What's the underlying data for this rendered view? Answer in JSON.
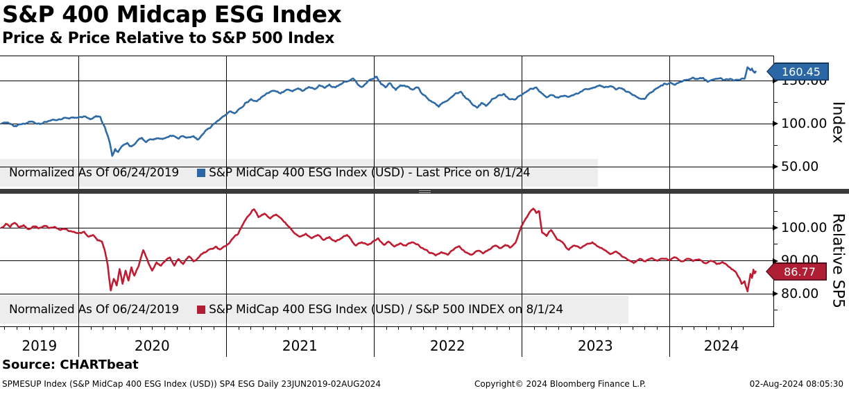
{
  "header": {
    "title": "S&P 400 Midcap ESG Index",
    "subtitle": "Price & Price Relative to S&P 500 Index"
  },
  "panels": {
    "top": {
      "axis_title": "Index",
      "y_axis": {
        "major": [
          {
            "v": 150,
            "label": "150.00"
          },
          {
            "v": 100,
            "label": "100.00"
          },
          {
            "v": 50,
            "label": "50.00"
          }
        ],
        "minor": [
          125,
          75
        ]
      },
      "legend": {
        "normalized_label": "Normalized As Of 06/24/2019",
        "series_label": "S&P MidCap 400 ESG Index (USD) - Last Price on 8/1/24",
        "swatch_color": "#2b67a5"
      },
      "last_price_badge": {
        "text": "160.45",
        "fill": "#2b67a5",
        "border": "#16365c"
      }
    },
    "bottom": {
      "axis_title": "Relative SP5",
      "y_axis": {
        "major": [
          {
            "v": 100,
            "label": "100.00"
          },
          {
            "v": 90,
            "label": "90.00"
          },
          {
            "v": 80,
            "label": "80.00"
          }
        ],
        "minor": [
          105,
          95,
          85,
          75
        ]
      },
      "legend": {
        "normalized_label": "Normalized As Of 06/24/2019",
        "series_label": "S&P MidCap 400 ESG Index (USD) / S&P 500 INDEX on 8/1/24",
        "swatch_color": "#b01e33"
      },
      "last_price_badge": {
        "text": "86.77",
        "fill": "#b01e33",
        "border": "#4d0d18"
      }
    }
  },
  "x_axis": {
    "years": [
      "2019",
      "2020",
      "2021",
      "2022",
      "2023",
      "2024"
    ]
  },
  "footer": {
    "source": "Source: CHARTbeat",
    "ticker_line": "SPMESUP Index (S&P MidCap 400 ESG Index (USD)) SP4 ESG  Daily 23JUN2019-02AUG2024",
    "copyright": "Copyright© 2024 Bloomberg Finance L.P.",
    "timestamp": "02-Aug-2024 08:05:30"
  },
  "chart_data": [
    {
      "type": "line",
      "panel": "top",
      "name": "S&P MidCap 400 ESG Index (USD) - Last Price",
      "ticker": "SPMESUP Index",
      "ylabel": "Index",
      "color": "#2e6ba6",
      "normalized_as_of": "06/24/2019",
      "last_value": 160.45,
      "last_date": "8/1/24",
      "yticks": [
        50,
        100,
        150
      ],
      "ylim": [
        23,
        179
      ],
      "xlim": [
        2019.478,
        2024.71
      ],
      "x_unit": "decimal_year",
      "points": [
        [
          2019.48,
          100
        ],
        [
          2019.52,
          101.3
        ],
        [
          2019.55,
          99.2
        ],
        [
          2019.58,
          96.8
        ],
        [
          2019.62,
          99.5
        ],
        [
          2019.66,
          101.2
        ],
        [
          2019.7,
          101.8
        ],
        [
          2019.73,
          100.2
        ],
        [
          2019.77,
          102
        ],
        [
          2019.81,
          103.2
        ],
        [
          2019.85,
          104
        ],
        [
          2019.89,
          105.2
        ],
        [
          2019.93,
          106.3
        ],
        [
          2019.97,
          107
        ],
        [
          2020.01,
          107.6
        ],
        [
          2020.05,
          108.2
        ],
        [
          2020.08,
          105
        ],
        [
          2020.12,
          108.8
        ],
        [
          2020.15,
          107.5
        ],
        [
          2020.18,
          96
        ],
        [
          2020.21,
          80
        ],
        [
          2020.23,
          62.5
        ],
        [
          2020.25,
          70.5
        ],
        [
          2020.27,
          67
        ],
        [
          2020.3,
          74.5
        ],
        [
          2020.33,
          77.5
        ],
        [
          2020.36,
          73.5
        ],
        [
          2020.4,
          80
        ],
        [
          2020.43,
          83.5
        ],
        [
          2020.46,
          78.5
        ],
        [
          2020.5,
          81.5
        ],
        [
          2020.53,
          83
        ],
        [
          2020.57,
          82
        ],
        [
          2020.61,
          84.5
        ],
        [
          2020.64,
          86
        ],
        [
          2020.68,
          82.5
        ],
        [
          2020.71,
          85.5
        ],
        [
          2020.74,
          84
        ],
        [
          2020.78,
          85.5
        ],
        [
          2020.81,
          81.5
        ],
        [
          2020.84,
          87
        ],
        [
          2020.87,
          93
        ],
        [
          2020.9,
          96.5
        ],
        [
          2020.93,
          101
        ],
        [
          2020.96,
          105.5
        ],
        [
          2021,
          110.5
        ],
        [
          2021.03,
          114
        ],
        [
          2021.06,
          112
        ],
        [
          2021.1,
          118
        ],
        [
          2021.13,
          124
        ],
        [
          2021.17,
          128.5
        ],
        [
          2021.21,
          126
        ],
        [
          2021.25,
          132
        ],
        [
          2021.29,
          135.5
        ],
        [
          2021.33,
          138
        ],
        [
          2021.37,
          135
        ],
        [
          2021.41,
          139.5
        ],
        [
          2021.45,
          137.5
        ],
        [
          2021.49,
          141
        ],
        [
          2021.52,
          138
        ],
        [
          2021.56,
          142.5
        ],
        [
          2021.6,
          140
        ],
        [
          2021.63,
          144.5
        ],
        [
          2021.67,
          141.5
        ],
        [
          2021.7,
          145.5
        ],
        [
          2021.74,
          142
        ],
        [
          2021.78,
          146
        ],
        [
          2021.82,
          149
        ],
        [
          2021.86,
          152.5
        ],
        [
          2021.89,
          146
        ],
        [
          2021.92,
          142.5
        ],
        [
          2021.96,
          149
        ],
        [
          2022,
          152
        ],
        [
          2022.02,
          154.5
        ],
        [
          2022.05,
          146
        ],
        [
          2022.08,
          142
        ],
        [
          2022.11,
          147
        ],
        [
          2022.15,
          139
        ],
        [
          2022.18,
          144.5
        ],
        [
          2022.22,
          143
        ],
        [
          2022.26,
          139.5
        ],
        [
          2022.3,
          142
        ],
        [
          2022.33,
          134
        ],
        [
          2022.37,
          128
        ],
        [
          2022.41,
          124
        ],
        [
          2022.44,
          119.5
        ],
        [
          2022.47,
          124.5
        ],
        [
          2022.51,
          128.5
        ],
        [
          2022.55,
          134.5
        ],
        [
          2022.59,
          137
        ],
        [
          2022.62,
          130
        ],
        [
          2022.66,
          124
        ],
        [
          2022.7,
          118.5
        ],
        [
          2022.73,
          124
        ],
        [
          2022.76,
          120.5
        ],
        [
          2022.8,
          128.5
        ],
        [
          2022.84,
          132.5
        ],
        [
          2022.88,
          134.5
        ],
        [
          2022.91,
          129.5
        ],
        [
          2022.95,
          128
        ],
        [
          2022.98,
          131.5
        ],
        [
          2023.02,
          136
        ],
        [
          2023.06,
          140.5
        ],
        [
          2023.1,
          142
        ],
        [
          2023.13,
          136.5
        ],
        [
          2023.17,
          130.5
        ],
        [
          2023.21,
          133
        ],
        [
          2023.25,
          130
        ],
        [
          2023.29,
          132.5
        ],
        [
          2023.33,
          132
        ],
        [
          2023.37,
          135
        ],
        [
          2023.41,
          137.5
        ],
        [
          2023.45,
          140
        ],
        [
          2023.49,
          142
        ],
        [
          2023.53,
          144.5
        ],
        [
          2023.56,
          142
        ],
        [
          2023.6,
          143.5
        ],
        [
          2023.64,
          139.5
        ],
        [
          2023.68,
          141
        ],
        [
          2023.71,
          137
        ],
        [
          2023.75,
          133.5
        ],
        [
          2023.79,
          130
        ],
        [
          2023.83,
          128.5
        ],
        [
          2023.86,
          134
        ],
        [
          2023.9,
          139.5
        ],
        [
          2023.94,
          143.5
        ],
        [
          2023.97,
          146.5
        ],
        [
          2024.01,
          147.5
        ],
        [
          2024.04,
          145
        ],
        [
          2024.08,
          148.5
        ],
        [
          2024.12,
          151
        ],
        [
          2024.16,
          153.5
        ],
        [
          2024.19,
          151.5
        ],
        [
          2024.23,
          153
        ],
        [
          2024.26,
          148.5
        ],
        [
          2024.3,
          151.5
        ],
        [
          2024.34,
          152.5
        ],
        [
          2024.37,
          150.5
        ],
        [
          2024.41,
          152
        ],
        [
          2024.44,
          150
        ],
        [
          2024.48,
          150.5
        ],
        [
          2024.51,
          152
        ],
        [
          2024.53,
          165.5
        ],
        [
          2024.55,
          162
        ],
        [
          2024.56,
          164
        ],
        [
          2024.575,
          159.5
        ],
        [
          2024.585,
          160.45
        ]
      ]
    },
    {
      "type": "line",
      "panel": "bottom",
      "name": "S&P MidCap 400 ESG Index (USD) / S&P 500 INDEX",
      "ylabel": "Relative SP5",
      "color": "#bf1c31",
      "normalized_as_of": "06/24/2019",
      "last_value": 86.77,
      "last_date": "8/1/24",
      "yticks": [
        80,
        90,
        100
      ],
      "ylim": [
        70,
        110.2
      ],
      "xlim": [
        2019.478,
        2024.71
      ],
      "x_unit": "decimal_year",
      "points": [
        [
          2019.48,
          100
        ],
        [
          2019.51,
          101.2
        ],
        [
          2019.54,
          100.3
        ],
        [
          2019.57,
          101.5
        ],
        [
          2019.6,
          100
        ],
        [
          2019.63,
          100.8
        ],
        [
          2019.66,
          99.6
        ],
        [
          2019.7,
          100.4
        ],
        [
          2019.73,
          99.8
        ],
        [
          2019.77,
          100.6
        ],
        [
          2019.8,
          99.9
        ],
        [
          2019.84,
          100.3
        ],
        [
          2019.88,
          99.3
        ],
        [
          2019.92,
          99.6
        ],
        [
          2019.96,
          98.8
        ],
        [
          2020,
          98.4
        ],
        [
          2020.04,
          98.8
        ],
        [
          2020.07,
          97.3
        ],
        [
          2020.1,
          97.8
        ],
        [
          2020.13,
          96.2
        ],
        [
          2020.16,
          95.8
        ],
        [
          2020.18,
          93
        ],
        [
          2020.2,
          88.5
        ],
        [
          2020.22,
          81
        ],
        [
          2020.24,
          84.5
        ],
        [
          2020.26,
          82.5
        ],
        [
          2020.28,
          87.5
        ],
        [
          2020.3,
          83
        ],
        [
          2020.32,
          87
        ],
        [
          2020.34,
          84
        ],
        [
          2020.36,
          88
        ],
        [
          2020.38,
          85.5
        ],
        [
          2020.41,
          88.5
        ],
        [
          2020.44,
          93.2
        ],
        [
          2020.47,
          90
        ],
        [
          2020.5,
          87
        ],
        [
          2020.53,
          89.5
        ],
        [
          2020.56,
          88.5
        ],
        [
          2020.59,
          90
        ],
        [
          2020.62,
          91
        ],
        [
          2020.65,
          88.5
        ],
        [
          2020.68,
          90.5
        ],
        [
          2020.71,
          89
        ],
        [
          2020.75,
          91.3
        ],
        [
          2020.78,
          89.8
        ],
        [
          2020.81,
          90.8
        ],
        [
          2020.85,
          92.5
        ],
        [
          2020.89,
          93.5
        ],
        [
          2020.93,
          94.3
        ],
        [
          2020.96,
          93.4
        ],
        [
          2021,
          94.5
        ],
        [
          2021.04,
          96.5
        ],
        [
          2021.08,
          98
        ],
        [
          2021.12,
          101.5
        ],
        [
          2021.16,
          104
        ],
        [
          2021.19,
          105.6
        ],
        [
          2021.22,
          103.2
        ],
        [
          2021.26,
          104.3
        ],
        [
          2021.3,
          102.8
        ],
        [
          2021.34,
          104
        ],
        [
          2021.38,
          102.5
        ],
        [
          2021.42,
          100.5
        ],
        [
          2021.46,
          98.5
        ],
        [
          2021.5,
          97.3
        ],
        [
          2021.54,
          98.2
        ],
        [
          2021.58,
          96.8
        ],
        [
          2021.62,
          97.8
        ],
        [
          2021.66,
          96.3
        ],
        [
          2021.7,
          97.2
        ],
        [
          2021.74,
          95.8
        ],
        [
          2021.78,
          96.8
        ],
        [
          2021.82,
          97.8
        ],
        [
          2021.85,
          96.2
        ],
        [
          2021.88,
          94.6
        ],
        [
          2021.92,
          95.6
        ],
        [
          2021.96,
          94.8
        ],
        [
          2022,
          96
        ],
        [
          2022.03,
          96.8
        ],
        [
          2022.07,
          94.8
        ],
        [
          2022.1,
          95.8
        ],
        [
          2022.14,
          94.3
        ],
        [
          2022.18,
          95.3
        ],
        [
          2022.22,
          94.6
        ],
        [
          2022.26,
          95.6
        ],
        [
          2022.3,
          94.9
        ],
        [
          2022.34,
          93.5
        ],
        [
          2022.38,
          92.3
        ],
        [
          2022.42,
          91.6
        ],
        [
          2022.46,
          92.6
        ],
        [
          2022.5,
          91.8
        ],
        [
          2022.54,
          93.3
        ],
        [
          2022.58,
          94.4
        ],
        [
          2022.62,
          92.6
        ],
        [
          2022.66,
          91.8
        ],
        [
          2022.7,
          93
        ],
        [
          2022.74,
          92.2
        ],
        [
          2022.78,
          93.4
        ],
        [
          2022.82,
          94.6
        ],
        [
          2022.85,
          93.8
        ],
        [
          2022.89,
          94.8
        ],
        [
          2022.92,
          94
        ],
        [
          2022.96,
          95.5
        ],
        [
          2023,
          100.5
        ],
        [
          2023.04,
          103.5
        ],
        [
          2023.08,
          105.8
        ],
        [
          2023.1,
          104.5
        ],
        [
          2023.12,
          105
        ],
        [
          2023.14,
          98.5
        ],
        [
          2023.17,
          97.5
        ],
        [
          2023.2,
          99.3
        ],
        [
          2023.24,
          96.5
        ],
        [
          2023.28,
          95.5
        ],
        [
          2023.32,
          93.3
        ],
        [
          2023.36,
          94.6
        ],
        [
          2023.4,
          93.8
        ],
        [
          2023.44,
          95
        ],
        [
          2023.48,
          95.6
        ],
        [
          2023.52,
          94.3
        ],
        [
          2023.56,
          93.3
        ],
        [
          2023.6,
          92
        ],
        [
          2023.64,
          92.8
        ],
        [
          2023.68,
          91.3
        ],
        [
          2023.72,
          90.3
        ],
        [
          2023.76,
          89.3
        ],
        [
          2023.8,
          90.6
        ],
        [
          2023.84,
          89.8
        ],
        [
          2023.88,
          90.8
        ],
        [
          2023.92,
          90
        ],
        [
          2023.96,
          90.6
        ],
        [
          2024,
          90.2
        ],
        [
          2024.04,
          91
        ],
        [
          2024.08,
          89.8
        ],
        [
          2024.12,
          90.6
        ],
        [
          2024.16,
          89.9
        ],
        [
          2024.2,
          90.4
        ],
        [
          2024.24,
          89.3
        ],
        [
          2024.28,
          90
        ],
        [
          2024.32,
          89
        ],
        [
          2024.36,
          89.6
        ],
        [
          2024.4,
          88.3
        ],
        [
          2024.44,
          87
        ],
        [
          2024.47,
          85
        ],
        [
          2024.49,
          83
        ],
        [
          2024.51,
          83.8
        ],
        [
          2024.53,
          80.7
        ],
        [
          2024.55,
          86
        ],
        [
          2024.56,
          84.8
        ],
        [
          2024.57,
          87.3
        ],
        [
          2024.575,
          86.2
        ],
        [
          2024.585,
          86.77
        ]
      ]
    }
  ]
}
